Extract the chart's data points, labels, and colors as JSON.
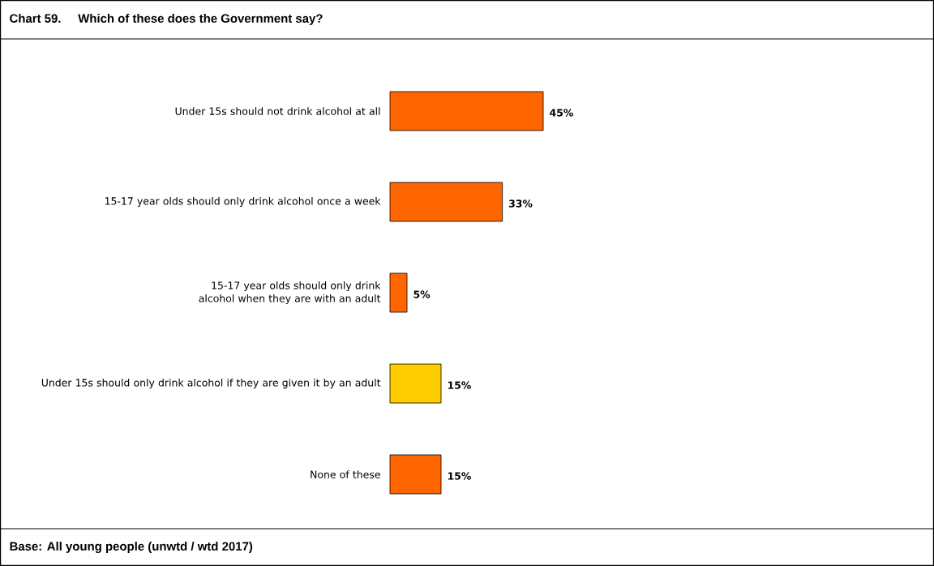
{
  "chart_data": {
    "type": "bar",
    "orientation": "horizontal",
    "title": "Chart 59.     Which of these does the Government say?",
    "categories": [
      "Under 15s should not drink alcohol at all",
      "15-17 year olds should only drink alcohol once a week",
      "15-17 year olds should only drink alcohol when they are with an adult",
      "Under 15s should only drink alcohol if they are given it by an adult",
      "None of these"
    ],
    "values": [
      45,
      33,
      5,
      15,
      15
    ],
    "colors": [
      "#ff6600",
      "#ff6600",
      "#ff6600",
      "#ffcc00",
      "#ff6600"
    ],
    "value_labels": [
      "45%",
      "33%",
      "5%",
      "15%",
      "15%"
    ],
    "annotations": [
      "Base: All young people (unwtd / wtd 2017)"
    ]
  }
}
